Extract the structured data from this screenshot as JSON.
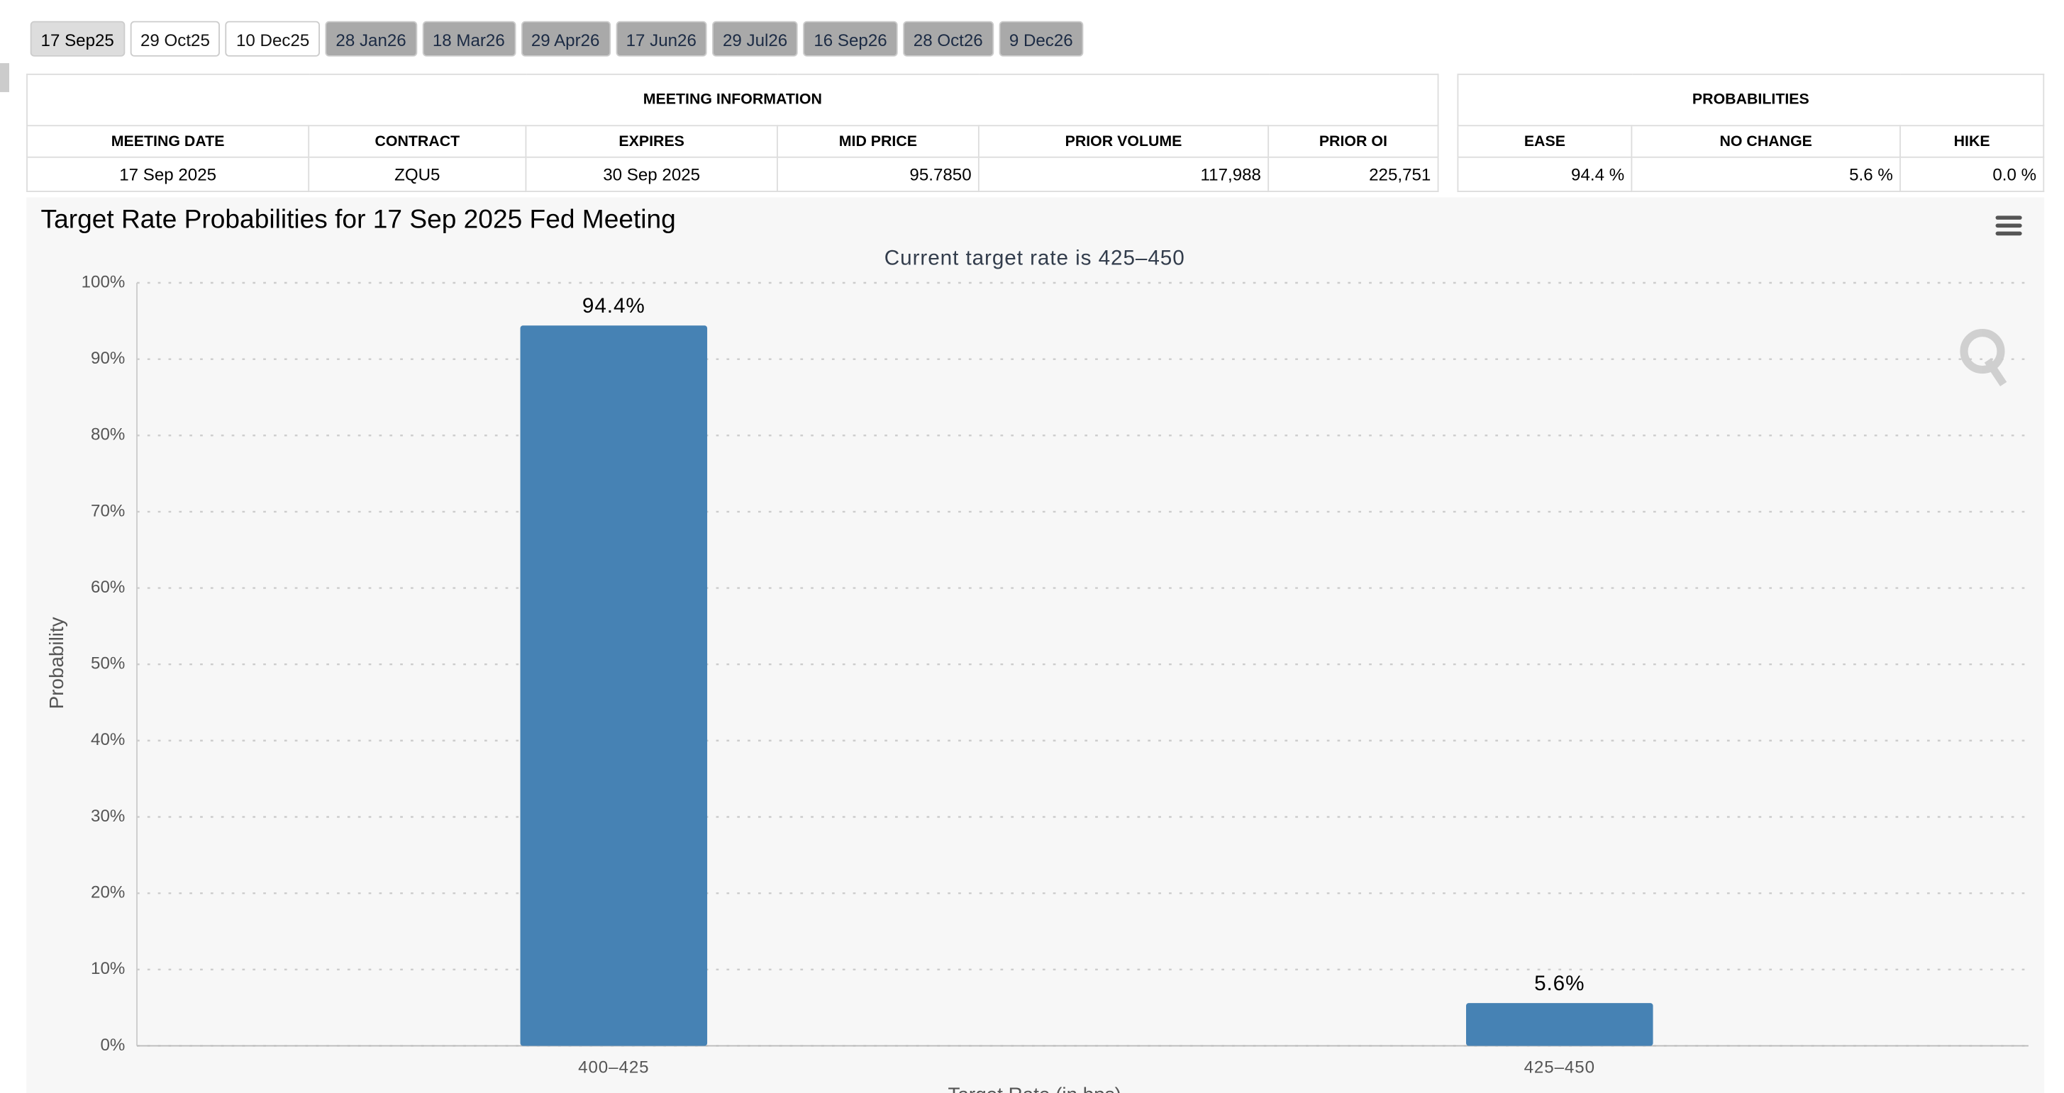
{
  "tabs": [
    "17 Sep25",
    "29 Oct25",
    "10 Dec25",
    "28 Jan26",
    "18 Mar26",
    "29 Apr26",
    "17 Jun26",
    "29 Jul26",
    "16 Sep26",
    "28 Oct26",
    "9 Dec26"
  ],
  "meeting_table": {
    "title": "MEETING INFORMATION",
    "headers": [
      "MEETING DATE",
      "CONTRACT",
      "EXPIRES",
      "MID PRICE",
      "PRIOR VOLUME",
      "PRIOR OI"
    ],
    "row": [
      "17 Sep 2025",
      "ZQU5",
      "30 Sep 2025",
      "95.7850",
      "117,988",
      "225,751"
    ]
  },
  "probabilities_table": {
    "title": "PROBABILITIES",
    "headers": [
      "EASE",
      "NO CHANGE",
      "HIKE"
    ],
    "row": [
      "94.4 %",
      "5.6 %",
      "0.0 %"
    ]
  },
  "chart_data": {
    "type": "bar",
    "title": "Target Rate Probabilities for 17 Sep 2025 Fed Meeting",
    "subtitle": "Current target rate is 425–450",
    "x_label": "Target Rate (in bps)",
    "y_label": "Probability",
    "categories": [
      "400–425",
      "425–450"
    ],
    "values": [
      94.4,
      5.6
    ],
    "value_labels": [
      "94.4%",
      "5.6%"
    ],
    "color": "#4682b4",
    "ylim": [
      0,
      100
    ],
    "yticks": [
      {
        "value": 0,
        "label": "0%"
      },
      {
        "value": 10,
        "label": "10%"
      },
      {
        "value": 20,
        "label": "20%"
      },
      {
        "value": 30,
        "label": "30%"
      },
      {
        "value": 40,
        "label": "40%"
      },
      {
        "value": 50,
        "label": "50%"
      },
      {
        "value": 60,
        "label": "60%"
      },
      {
        "value": 70,
        "label": "70%"
      },
      {
        "value": 80,
        "label": "80%"
      },
      {
        "value": 90,
        "label": "90%"
      },
      {
        "value": 100,
        "label": "100%"
      }
    ],
    "grid": true
  }
}
